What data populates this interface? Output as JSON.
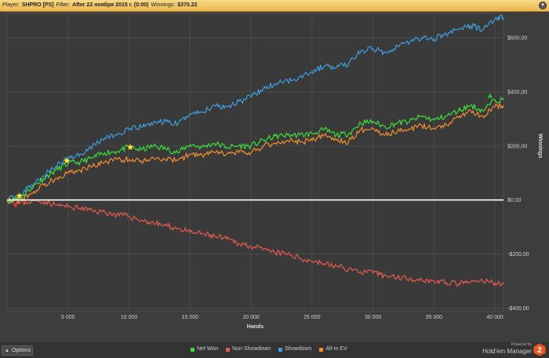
{
  "title_bar": {
    "player_label": "Player:",
    "player_value": "SHPRO [PS]",
    "filter_label": "Filter:",
    "filter_value": "After 22 ноября 2015 г. (0:00)",
    "winnings_label": "Winnings:",
    "winnings_value": "$370.22",
    "close_glyph": "▾"
  },
  "bottom_bar": {
    "options_label": "Options",
    "options_arrow": "▲",
    "powered_by": "Powered by",
    "brand_name": "Hold'em Manager",
    "brand_number": "2"
  },
  "colors": {
    "net_won": "#3ddc3d",
    "non_showdown": "#e55a4e",
    "showdown": "#3f9ee0",
    "all_in_ev": "#f08c2e",
    "zero_line": "#ffffff",
    "star": "#ffe84a",
    "background": "#3d3d3d",
    "title_bar": "#f3c766"
  },
  "chart_data": {
    "type": "line",
    "xlabel": "Hands",
    "ylabel": "Winnings",
    "xlim": [
      0,
      40700
    ],
    "ylim": [
      -410,
      690
    ],
    "x_ticks": [
      5000,
      10000,
      15000,
      20000,
      25000,
      30000,
      35000,
      40000
    ],
    "x_tick_labels": [
      "5 000",
      "10 000",
      "15 000",
      "20 000",
      "25 000",
      "30 000",
      "35 000",
      "40 000"
    ],
    "y_ticks": [
      600,
      400,
      200,
      0,
      -200,
      -400
    ],
    "y_tick_labels": [
      "$600,00",
      "$400,00",
      "$200,00",
      "$0,00",
      "-$200,00",
      "-$400,00"
    ],
    "grid": true,
    "legend_position": "bottom-center",
    "series": [
      {
        "name": "Net Won",
        "color": "#3ddc3d",
        "x": [
          0,
          1000,
          2000,
          3000,
          4000,
          5000,
          6000,
          7000,
          8000,
          9000,
          10000,
          11000,
          12000,
          13000,
          14000,
          15000,
          16000,
          17000,
          18000,
          19000,
          20000,
          21000,
          22000,
          23000,
          24000,
          25000,
          26000,
          27000,
          28000,
          29000,
          30000,
          31000,
          32000,
          33000,
          34000,
          35000,
          36000,
          37000,
          38000,
          39000,
          40000,
          40700
        ],
        "values": [
          0,
          5,
          45,
          80,
          110,
          135,
          140,
          155,
          175,
          180,
          195,
          185,
          200,
          190,
          175,
          205,
          195,
          210,
          195,
          200,
          200,
          220,
          235,
          240,
          240,
          245,
          260,
          240,
          245,
          285,
          290,
          270,
          285,
          290,
          310,
          295,
          310,
          330,
          350,
          330,
          370,
          370
        ]
      },
      {
        "name": "Non Showdown",
        "color": "#e55a4e",
        "x": [
          0,
          1000,
          2000,
          3000,
          4000,
          5000,
          6000,
          7000,
          8000,
          9000,
          10000,
          11000,
          12000,
          13000,
          14000,
          15000,
          16000,
          17000,
          18000,
          19000,
          20000,
          21000,
          22000,
          23000,
          24000,
          25000,
          26000,
          27000,
          28000,
          29000,
          30000,
          31000,
          32000,
          33000,
          34000,
          35000,
          36000,
          37000,
          38000,
          39000,
          40000,
          40700
        ],
        "values": [
          0,
          -12,
          -5,
          -5,
          -18,
          -25,
          -30,
          -40,
          -45,
          -55,
          -60,
          -75,
          -85,
          -95,
          -105,
          -120,
          -125,
          -135,
          -145,
          -160,
          -170,
          -185,
          -195,
          -200,
          -215,
          -225,
          -235,
          -245,
          -255,
          -265,
          -270,
          -280,
          -285,
          -290,
          -295,
          -300,
          -305,
          -310,
          -305,
          -300,
          -305,
          -310
        ]
      },
      {
        "name": "Showdown",
        "color": "#3f9ee0",
        "x": [
          0,
          1000,
          2000,
          3000,
          4000,
          5000,
          6000,
          7000,
          8000,
          9000,
          10000,
          11000,
          12000,
          13000,
          14000,
          15000,
          16000,
          17000,
          18000,
          19000,
          20000,
          21000,
          22000,
          23000,
          24000,
          25000,
          26000,
          27000,
          28000,
          29000,
          30000,
          31000,
          32000,
          33000,
          34000,
          35000,
          36000,
          37000,
          38000,
          39000,
          40000,
          40700
        ],
        "values": [
          0,
          15,
          55,
          90,
          125,
          155,
          170,
          200,
          230,
          240,
          260,
          270,
          285,
          290,
          280,
          320,
          325,
          350,
          345,
          365,
          380,
          410,
          430,
          440,
          455,
          475,
          495,
          490,
          505,
          550,
          560,
          545,
          570,
          585,
          600,
          595,
          615,
          630,
          645,
          630,
          670,
          675
        ]
      },
      {
        "name": "All-In EV",
        "color": "#f08c2e",
        "x": [
          0,
          1000,
          2000,
          3000,
          4000,
          5000,
          6000,
          7000,
          8000,
          9000,
          10000,
          11000,
          12000,
          13000,
          14000,
          15000,
          16000,
          17000,
          18000,
          19000,
          20000,
          21000,
          22000,
          23000,
          24000,
          25000,
          26000,
          27000,
          28000,
          29000,
          30000,
          31000,
          32000,
          33000,
          34000,
          35000,
          36000,
          37000,
          38000,
          39000,
          40000,
          40700
        ],
        "values": [
          0,
          -3,
          25,
          55,
          80,
          100,
          110,
          125,
          140,
          150,
          150,
          145,
          155,
          150,
          145,
          170,
          165,
          175,
          170,
          175,
          175,
          200,
          210,
          220,
          215,
          220,
          240,
          220,
          215,
          260,
          265,
          240,
          255,
          260,
          275,
          265,
          280,
          305,
          330,
          310,
          345,
          350
        ]
      }
    ],
    "markers": [
      {
        "type": "star",
        "x": 1000,
        "y": 15
      },
      {
        "type": "star",
        "x": 4900,
        "y": 145
      },
      {
        "type": "star",
        "x": 10100,
        "y": 195
      },
      {
        "type": "down-triangle",
        "x": 700,
        "y": -20
      },
      {
        "type": "up-triangle",
        "x": 39600,
        "y": 385
      }
    ]
  }
}
